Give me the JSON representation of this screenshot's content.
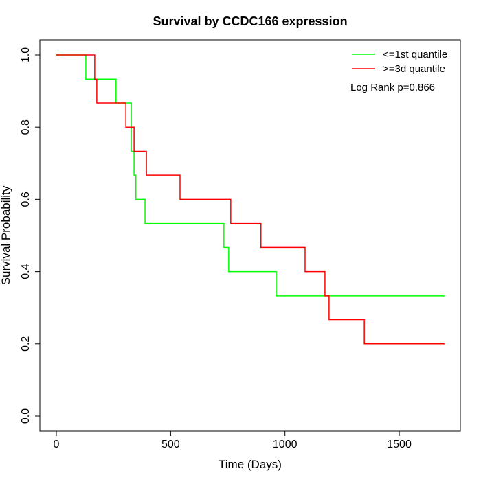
{
  "chart_data": {
    "type": "line",
    "step": true,
    "title": "Survival by CCDC166 expression",
    "xlabel": "Time (Days)",
    "ylabel": "Survival Probability",
    "xlim": [
      0,
      1700
    ],
    "ylim": [
      0,
      1
    ],
    "xticks": [
      "0",
      "500",
      "1000",
      "1500"
    ],
    "yticks": [
      "0.0",
      "0.2",
      "0.4",
      "0.6",
      "0.8",
      "1.0"
    ],
    "grid": false,
    "legend_position": "top-right",
    "annotation": "Log Rank p=0.866",
    "series": [
      {
        "name": "<=1st quantile",
        "color": "#00ff00",
        "x": [
          0,
          129,
          261,
          328,
          340,
          348,
          388,
          733,
          754,
          962,
          1698
        ],
        "y": [
          1.0,
          0.933,
          0.867,
          0.733,
          0.667,
          0.6,
          0.533,
          0.467,
          0.4,
          0.333,
          0.333
        ]
      },
      {
        "name": ">=3d quantile",
        "color": "#ff0000",
        "x": [
          0,
          168,
          177,
          304,
          340,
          394,
          541,
          763,
          895,
          1088,
          1175,
          1193,
          1347,
          1698
        ],
        "y": [
          1.0,
          0.933,
          0.867,
          0.8,
          0.733,
          0.667,
          0.6,
          0.533,
          0.467,
          0.4,
          0.333,
          0.267,
          0.2,
          0.2
        ]
      }
    ]
  }
}
